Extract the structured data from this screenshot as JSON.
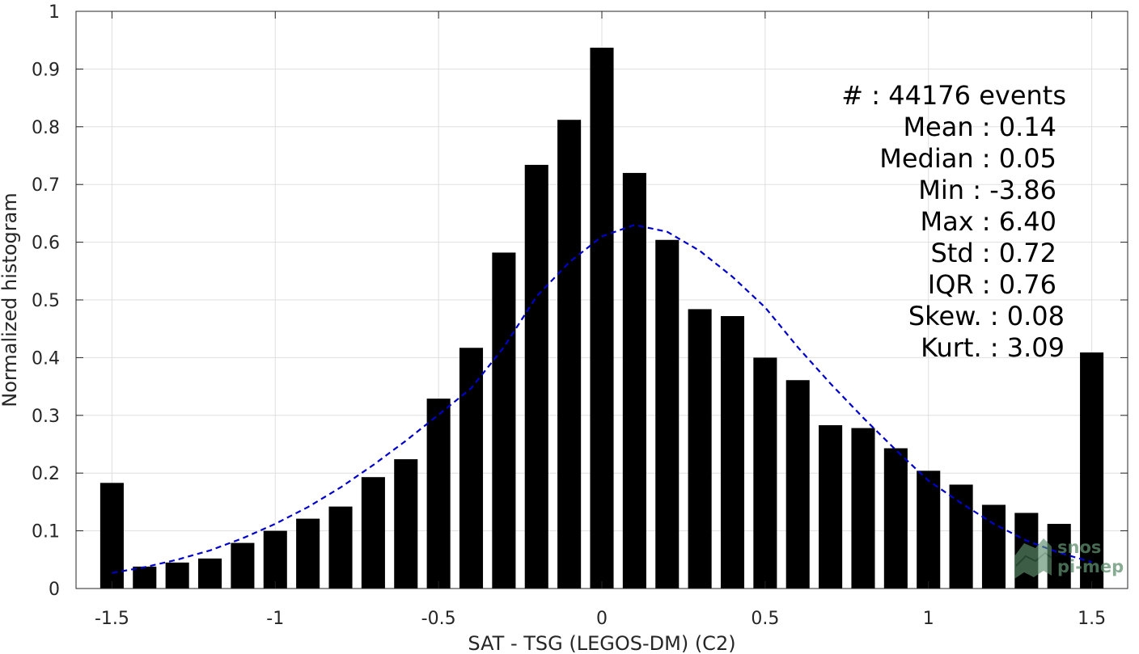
{
  "chart_data": {
    "type": "bar",
    "xlabel": "SAT - TSG (LEGOS-DM) (C2)",
    "ylabel": "Normalized histogram",
    "xlim": [
      -1.61,
      1.61
    ],
    "ylim": [
      0,
      1
    ],
    "xticks": [
      -1.5,
      -1,
      -0.5,
      0,
      0.5,
      1,
      1.5
    ],
    "xtick_labels": [
      "-1.5",
      "-1",
      "-0.5",
      "0",
      "0.5",
      "1",
      "1.5"
    ],
    "yticks": [
      0,
      0.1,
      0.2,
      0.3,
      0.4,
      0.5,
      0.6,
      0.7,
      0.8,
      0.9,
      1
    ],
    "ytick_labels": [
      "0",
      "0.1",
      "0.2",
      "0.3",
      "0.4",
      "0.5",
      "0.6",
      "0.7",
      "0.8",
      "0.9",
      "1"
    ],
    "grid": true,
    "bar_color": "#000000",
    "bar_width": 0.072,
    "x": [
      -1.5,
      -1.4,
      -1.3,
      -1.2,
      -1.1,
      -1.0,
      -0.9,
      -0.8,
      -0.7,
      -0.6,
      -0.5,
      -0.4,
      -0.3,
      -0.2,
      -0.1,
      0.0,
      0.1,
      0.2,
      0.3,
      0.4,
      0.5,
      0.6,
      0.7,
      0.8,
      0.9,
      1.0,
      1.1,
      1.2,
      1.3,
      1.4,
      1.5
    ],
    "values": [
      0.183,
      0.038,
      0.045,
      0.052,
      0.079,
      0.1,
      0.121,
      0.142,
      0.193,
      0.224,
      0.329,
      0.417,
      0.582,
      0.734,
      0.812,
      0.937,
      0.72,
      0.604,
      0.484,
      0.472,
      0.4,
      0.361,
      0.283,
      0.278,
      0.243,
      0.204,
      0.18,
      0.145,
      0.131,
      0.112,
      0.409
    ],
    "fit_curve": {
      "style": "dashed",
      "color": "#0000cc",
      "x": [
        -1.5,
        -1.4,
        -1.3,
        -1.2,
        -1.1,
        -1.0,
        -0.9,
        -0.8,
        -0.7,
        -0.6,
        -0.5,
        -0.4,
        -0.3,
        -0.2,
        -0.1,
        0.0,
        0.1,
        0.2,
        0.3,
        0.4,
        0.5,
        0.6,
        0.7,
        0.8,
        0.9,
        1.0,
        1.1,
        1.2,
        1.3,
        1.4,
        1.5
      ],
      "y": [
        0.027,
        0.037,
        0.05,
        0.066,
        0.087,
        0.112,
        0.141,
        0.175,
        0.214,
        0.256,
        0.301,
        0.347,
        0.418,
        0.506,
        0.565,
        0.61,
        0.63,
        0.618,
        0.585,
        0.54,
        0.487,
        0.418,
        0.355,
        0.296,
        0.24,
        0.187,
        0.148,
        0.112,
        0.083,
        0.062,
        0.046
      ]
    },
    "annotations": [
      "#  : 44176 events",
      "Mean : 0.14",
      "Median : 0.05",
      "Min : -3.86",
      "Max : 6.40",
      "Std : 0.72",
      "IQR : 0.76",
      "Skew. : 0.08",
      "Kurt. : 3.09"
    ]
  },
  "watermark": {
    "line1": "snos",
    "line2": "pi-mep",
    "color": "#5f8f6e"
  }
}
